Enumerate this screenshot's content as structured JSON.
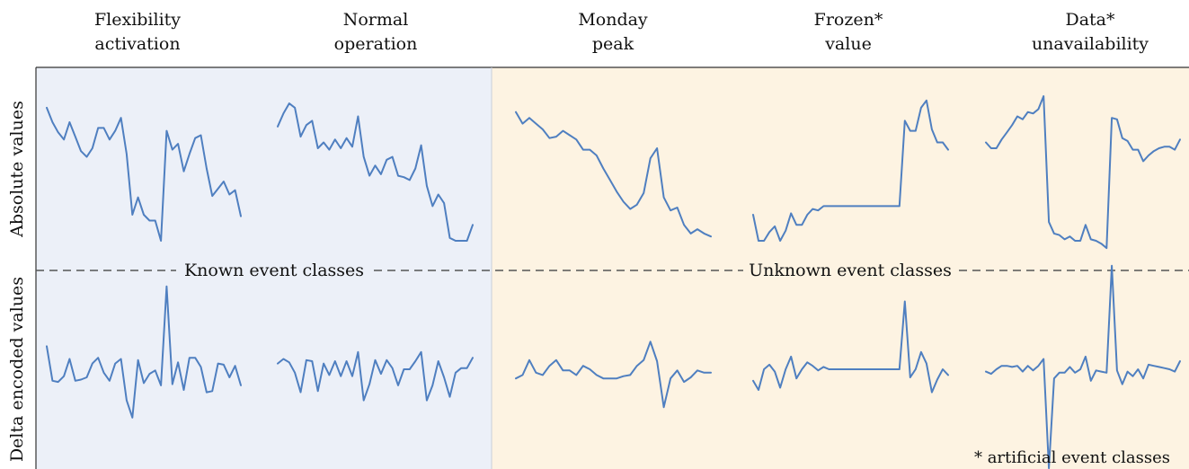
{
  "columns": [
    {
      "line1": "Flexibility",
      "line2": "activation"
    },
    {
      "line1": "Normal",
      "line2": "operation"
    },
    {
      "line1": "Monday",
      "line2": "peak"
    },
    {
      "line1": "Frozen*",
      "line2": "value"
    },
    {
      "line1": "Data*",
      "line2": "unavailability"
    }
  ],
  "rows": {
    "top": "Absolute values",
    "bottom": "Delta encoded values"
  },
  "regions": {
    "known": "Known event classes",
    "unknown": "Unknown event classes"
  },
  "footnote": "* artificial event classes",
  "colors": {
    "known_bg": "#ecf0f8",
    "unknown_bg": "#fdf3e2",
    "line": "#4f7fc0",
    "divider": "#555555"
  },
  "series": {
    "absolute": [
      [
        0.92,
        0.82,
        0.75,
        0.7,
        0.82,
        0.72,
        0.62,
        0.58,
        0.64,
        0.78,
        0.78,
        0.7,
        0.76,
        0.85,
        0.6,
        0.18,
        0.3,
        0.18,
        0.14,
        0.14,
        0.0,
        0.76,
        0.63,
        0.67,
        0.48,
        0.6,
        0.71,
        0.73,
        0.5,
        0.31,
        0.36,
        0.41,
        0.32,
        0.35,
        0.17
      ],
      [
        0.79,
        0.88,
        0.95,
        0.92,
        0.72,
        0.8,
        0.83,
        0.64,
        0.68,
        0.63,
        0.7,
        0.64,
        0.71,
        0.65,
        0.86,
        0.58,
        0.45,
        0.52,
        0.46,
        0.56,
        0.58,
        0.45,
        0.44,
        0.42,
        0.5,
        0.66,
        0.38,
        0.24,
        0.32,
        0.26,
        0.02,
        0.0,
        0.0,
        0.0,
        0.11
      ],
      [
        0.89,
        0.81,
        0.85,
        0.81,
        0.77,
        0.71,
        0.72,
        0.76,
        0.73,
        0.7,
        0.63,
        0.63,
        0.59,
        0.5,
        0.42,
        0.34,
        0.27,
        0.22,
        0.25,
        0.33,
        0.57,
        0.64,
        0.3,
        0.21,
        0.23,
        0.11,
        0.05,
        0.08,
        0.05,
        0.03
      ],
      [
        0.18,
        0.0,
        0.0,
        0.06,
        0.1,
        0.0,
        0.07,
        0.19,
        0.11,
        0.11,
        0.18,
        0.22,
        0.21,
        0.24,
        0.24,
        0.24,
        0.24,
        0.24,
        0.24,
        0.24,
        0.24,
        0.24,
        0.24,
        0.24,
        0.24,
        0.24,
        0.24,
        0.24,
        0.83,
        0.76,
        0.76,
        0.92,
        0.97,
        0.77,
        0.68,
        0.68,
        0.63
      ],
      [
        0.68,
        0.64,
        0.64,
        0.7,
        0.75,
        0.8,
        0.86,
        0.84,
        0.89,
        0.88,
        0.91,
        1.0,
        0.13,
        0.05,
        0.04,
        0.01,
        0.03,
        0.0,
        0.0,
        0.11,
        0.01,
        0.0,
        -0.02,
        -0.05,
        0.85,
        0.84,
        0.71,
        0.69,
        0.63,
        0.63,
        0.55,
        0.59,
        0.62,
        0.64,
        0.65,
        0.65,
        0.63,
        0.7
      ]
    ],
    "delta": [
      [
        0.2,
        -0.1,
        -0.11,
        -0.06,
        0.09,
        -0.1,
        -0.09,
        -0.07,
        0.05,
        0.1,
        -0.03,
        -0.1,
        0.05,
        0.09,
        -0.27,
        -0.42,
        0.08,
        -0.12,
        -0.04,
        -0.01,
        -0.14,
        0.72,
        -0.13,
        0.06,
        -0.18,
        0.1,
        0.1,
        0.02,
        -0.2,
        -0.19,
        0.05,
        0.04,
        -0.07,
        0.03,
        -0.14
      ],
      [
        0.05,
        0.09,
        0.06,
        -0.03,
        -0.2,
        0.08,
        0.07,
        -0.19,
        0.05,
        -0.05,
        0.07,
        -0.06,
        0.07,
        -0.06,
        0.15,
        -0.27,
        -0.13,
        0.08,
        -0.04,
        0.08,
        0.01,
        -0.14,
        0.0,
        0.0,
        0.07,
        0.15,
        -0.27,
        -0.14,
        0.07,
        -0.07,
        -0.24,
        -0.03,
        0.01,
        0.01,
        0.1
      ],
      [
        -0.08,
        -0.05,
        0.08,
        -0.03,
        -0.05,
        0.03,
        0.08,
        -0.01,
        -0.01,
        -0.05,
        0.03,
        0.0,
        -0.05,
        -0.08,
        -0.08,
        -0.08,
        -0.06,
        -0.05,
        0.03,
        0.08,
        0.24,
        0.07,
        -0.33,
        -0.08,
        -0.01,
        -0.11,
        -0.07,
        -0.01,
        -0.03,
        -0.03
      ],
      [
        -0.1,
        -0.18,
        0.0,
        0.04,
        -0.02,
        -0.16,
        0.0,
        0.11,
        -0.08,
        0.0,
        0.06,
        0.03,
        -0.01,
        0.02,
        0.0,
        0.0,
        0.0,
        0.0,
        0.0,
        0.0,
        0.0,
        0.0,
        0.0,
        0.0,
        0.0,
        0.0,
        0.0,
        0.0,
        0.59,
        -0.07,
        0.0,
        0.15,
        0.05,
        -0.2,
        -0.09,
        0.0,
        -0.05
      ],
      [
        -0.02,
        -0.04,
        0.0,
        0.03,
        0.03,
        0.02,
        0.03,
        -0.02,
        0.03,
        -0.01,
        0.03,
        0.09,
        -0.86,
        -0.08,
        -0.03,
        -0.03,
        0.02,
        -0.03,
        0.0,
        0.11,
        -0.1,
        -0.01,
        -0.02,
        -0.03,
        0.9,
        -0.01,
        -0.13,
        -0.02,
        -0.06,
        0.0,
        -0.08,
        0.04,
        0.03,
        0.02,
        0.01,
        0.0,
        -0.02,
        0.07
      ]
    ]
  }
}
